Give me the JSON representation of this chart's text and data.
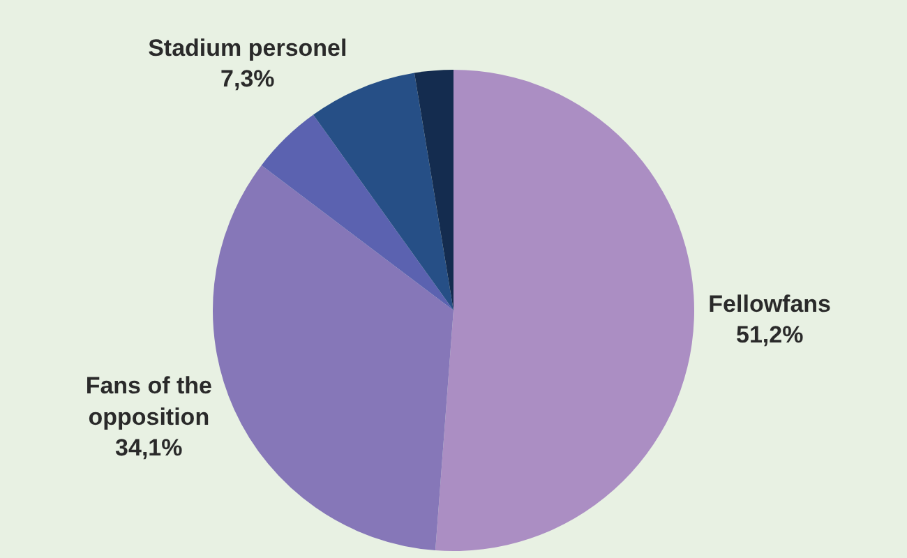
{
  "chart_data": {
    "type": "pie",
    "categories": [
      "Fellowfans",
      "Fans of the opposition",
      null,
      "Stadium personel",
      null
    ],
    "values": [
      51.2,
      34.1,
      4.8,
      7.3,
      2.6
    ],
    "value_labels": [
      "51,2%",
      "34,1%",
      null,
      "7,3%",
      null
    ],
    "colors": [
      "#ab8ec3",
      "#8677b8",
      "#5b62b0",
      "#264f86",
      "#142c4f"
    ],
    "legend": false
  }
}
